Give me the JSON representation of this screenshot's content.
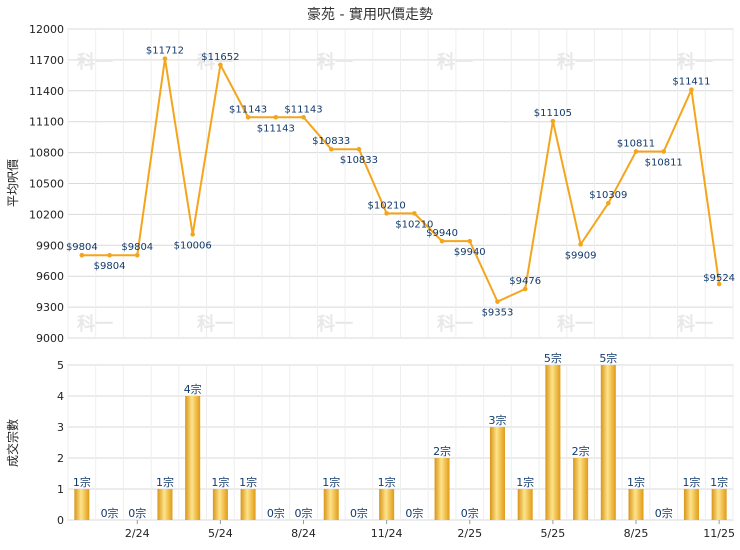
{
  "chart_data": [
    {
      "type": "line",
      "title": "豪苑 - 實用呎價走勢",
      "ylabel": "平均呎價",
      "ylim": [
        9000,
        12000
      ],
      "yticks": [
        9000,
        9300,
        9600,
        9900,
        10200,
        10500,
        10800,
        11100,
        11400,
        11700,
        12000
      ],
      "color": "#f5a51c",
      "points": [
        {
          "x": 0,
          "y": 9804,
          "label": "$9804"
        },
        {
          "x": 1,
          "y": 9804,
          "label": "$9804"
        },
        {
          "x": 2,
          "y": 9804,
          "label": "$9804"
        },
        {
          "x": 3,
          "y": 11712,
          "label": "$11712"
        },
        {
          "x": 4,
          "y": 10006,
          "label": "$10006"
        },
        {
          "x": 5,
          "y": 11652,
          "label": "$11652"
        },
        {
          "x": 6,
          "y": 11143,
          "label": "$11143"
        },
        {
          "x": 7,
          "y": 11143,
          "label": "$11143"
        },
        {
          "x": 8,
          "y": 11143,
          "label": "$11143"
        },
        {
          "x": 9,
          "y": 10833,
          "label": "$10833"
        },
        {
          "x": 10,
          "y": 10833,
          "label": "$10833"
        },
        {
          "x": 11,
          "y": 10210,
          "label": "$10210"
        },
        {
          "x": 12,
          "y": 10210,
          "label": "$10210"
        },
        {
          "x": 13,
          "y": 9940,
          "label": "$9940"
        },
        {
          "x": 14,
          "y": 9940,
          "label": "$9940"
        },
        {
          "x": 15,
          "y": 9353,
          "label": "$9353"
        },
        {
          "x": 16,
          "y": 9476,
          "label": "$9476"
        },
        {
          "x": 17,
          "y": 11105,
          "label": "$11105"
        },
        {
          "x": 18,
          "y": 9909,
          "label": "$9909"
        },
        {
          "x": 19,
          "y": 10309,
          "label": "$10309"
        },
        {
          "x": 20,
          "y": 10811,
          "label": "$10811"
        },
        {
          "x": 21,
          "y": 10811,
          "label": "$10811"
        },
        {
          "x": 22,
          "y": 11411,
          "label": "$11411"
        },
        {
          "x": 23,
          "y": 9524,
          "label": "$9524"
        }
      ]
    },
    {
      "type": "bar",
      "ylabel": "成交宗數",
      "ylim": [
        0,
        5
      ],
      "yticks": [
        0,
        1,
        2,
        3,
        4,
        5
      ],
      "color": "#f0b428",
      "categories": [
        "",
        "",
        "2/24",
        "",
        "",
        "5/24",
        "",
        "",
        "8/24",
        "",
        "",
        "11/24",
        "",
        "",
        "2/25",
        "",
        "",
        "5/25",
        "",
        "",
        "8/25",
        "",
        "",
        "11/25"
      ],
      "values": [
        1,
        0,
        0,
        1,
        4,
        1,
        1,
        0,
        0,
        1,
        0,
        1,
        0,
        2,
        0,
        3,
        1,
        5,
        2,
        5,
        1,
        0,
        1,
        1
      ],
      "value_labels": [
        "1宗",
        "0宗",
        "0宗",
        "1宗",
        "4宗",
        "1宗",
        "1宗",
        "0宗",
        "0宗",
        "1宗",
        "0宗",
        "1宗",
        "0宗",
        "2宗",
        "0宗",
        "3宗",
        "1宗",
        "5宗",
        "2宗",
        "5宗",
        "1宗",
        "0宗",
        "1宗",
        "1宗"
      ]
    }
  ],
  "watermark": "科一"
}
